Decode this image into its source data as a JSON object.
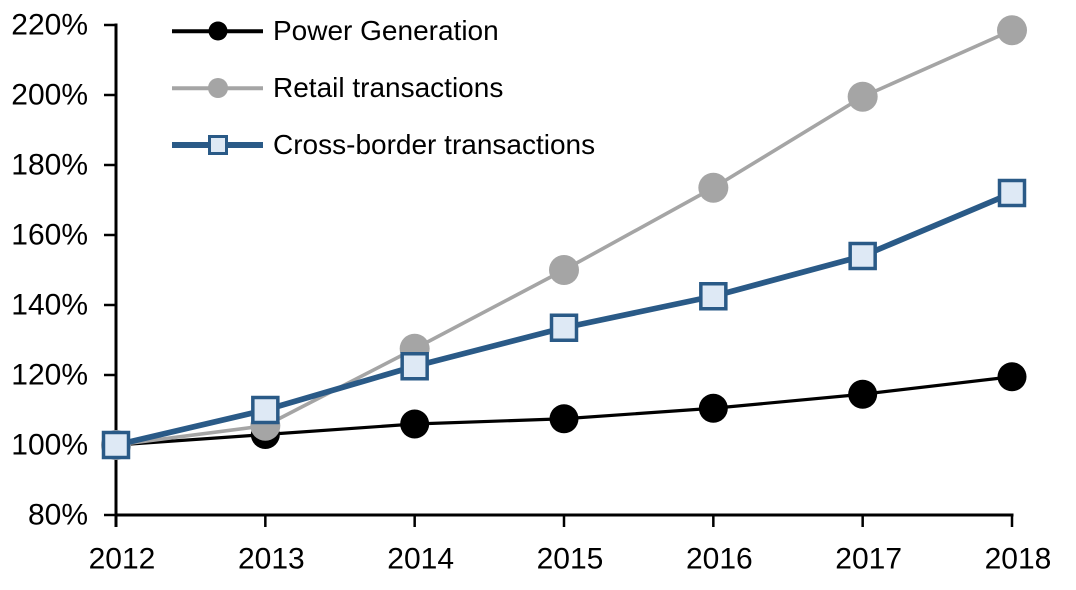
{
  "chart_data": {
    "type": "line",
    "title": "",
    "xlabel": "",
    "ylabel": "",
    "x": [
      2012,
      2013,
      2014,
      2015,
      2016,
      2017,
      2018
    ],
    "x_tick_labels": [
      "2012",
      "2013",
      "2014",
      "2015",
      "2016",
      "2017",
      "2018"
    ],
    "y_ticks": [
      {
        "value": 220,
        "label": "220%"
      },
      {
        "value": 200,
        "label": "200%"
      },
      {
        "value": 180,
        "label": "180%"
      },
      {
        "value": 160,
        "label": "160%"
      },
      {
        "value": 140,
        "label": "140%"
      },
      {
        "value": 120,
        "label": "120%"
      },
      {
        "value": 100,
        "label": "100%"
      },
      {
        "value": 80,
        "label": "80%"
      }
    ],
    "ylim": [
      80,
      220
    ],
    "grid": false,
    "legend_position": "top-left",
    "axis_color": "#000000",
    "series": [
      {
        "name": "Power Generation",
        "values": [
          100,
          103,
          106,
          107.5,
          110.5,
          114.5,
          119.5
        ],
        "color": "#000000",
        "marker": "circle",
        "marker_fill": "#000000"
      },
      {
        "name": "Retail transactions",
        "values": [
          100,
          105.5,
          127.5,
          150,
          173.5,
          199.5,
          218.5
        ],
        "color": "#A5A5A5",
        "marker": "circle",
        "marker_fill": "#A5A5A5"
      },
      {
        "name": "Cross-border transactions",
        "values": [
          100,
          110,
          122.5,
          133.5,
          142.5,
          154,
          172
        ],
        "color": "#2A5A87",
        "marker": "square",
        "marker_fill": "#DEE9F5"
      }
    ]
  }
}
